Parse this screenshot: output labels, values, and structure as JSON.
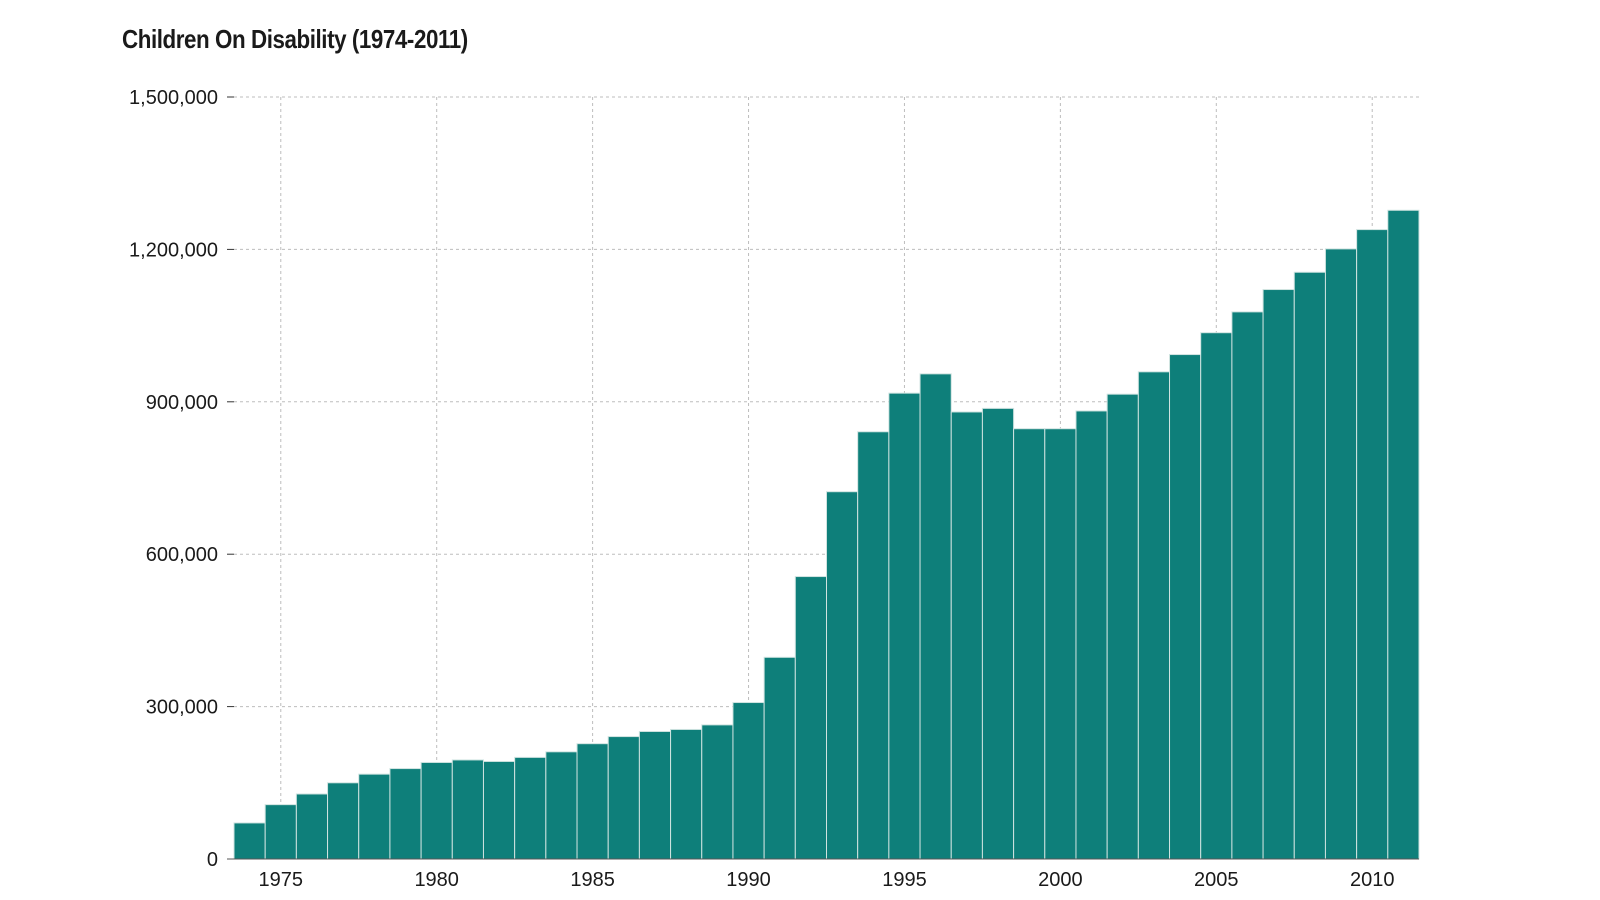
{
  "chart_data": {
    "type": "bar",
    "title": "Children On Disability (1974-2011)",
    "xlabel": "",
    "ylabel": "",
    "ylim": [
      0,
      1500000
    ],
    "y_ticks": [
      0,
      300000,
      600000,
      900000,
      1200000,
      1500000
    ],
    "y_tick_labels": [
      "0",
      "300,000",
      "600,000",
      "900,000",
      "1,200,000",
      "1,500,000"
    ],
    "x_ticks": [
      1975,
      1980,
      1985,
      1990,
      1995,
      2000,
      2005,
      2010
    ],
    "x_tick_labels": [
      "1975",
      "1980",
      "1985",
      "1990",
      "1995",
      "2000",
      "2005",
      "2010"
    ],
    "grid": true,
    "bar_color": "#0e7f7a",
    "bar_edge_color": "#cfe3e0",
    "grid_color": "#bdbdbd",
    "categories": [
      1974,
      1975,
      1976,
      1977,
      1978,
      1979,
      1980,
      1981,
      1982,
      1983,
      1984,
      1985,
      1986,
      1987,
      1988,
      1989,
      1990,
      1991,
      1992,
      1993,
      1994,
      1995,
      1996,
      1997,
      1998,
      1999,
      2000,
      2001,
      2002,
      2003,
      2004,
      2005,
      2006,
      2007,
      2008,
      2009,
      2010,
      2011
    ],
    "values": [
      71000,
      107000,
      128000,
      150000,
      167000,
      178000,
      190000,
      195000,
      192000,
      200000,
      211000,
      227000,
      241000,
      251000,
      255000,
      264000,
      308000,
      397000,
      556000,
      723000,
      841000,
      917000,
      955000,
      880000,
      887000,
      847000,
      847000,
      882000,
      915000,
      959000,
      993000,
      1036000,
      1077000,
      1121000,
      1155000,
      1201000,
      1239000,
      1277000
    ]
  }
}
